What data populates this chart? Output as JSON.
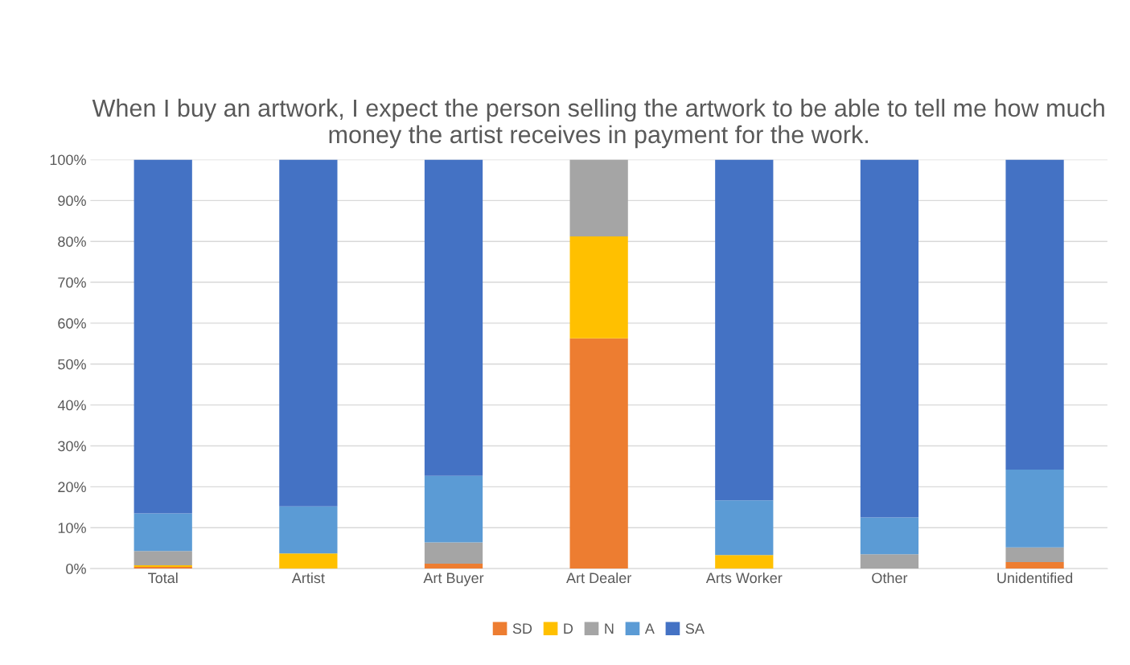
{
  "chart_data": {
    "type": "bar",
    "title": "When I buy an artwork, I expect the person selling the artwork to be able to tell me how much money the artist receives in payment for the work.",
    "categories": [
      "Total",
      "Artist",
      "Art Buyer",
      "Art Dealer",
      "Arts Worker",
      "Other",
      "Unidentified"
    ],
    "stacked": true,
    "series": [
      {
        "name": "SD",
        "color": "#ed7d31",
        "values": [
          0.4,
          0,
          1.2,
          56.3,
          0,
          0,
          1.6
        ]
      },
      {
        "name": "D",
        "color": "#ffc000",
        "values": [
          0.4,
          3.7,
          0,
          24.9,
          3.3,
          0,
          0
        ]
      },
      {
        "name": "N",
        "color": "#a5a5a5",
        "values": [
          3.5,
          0,
          5.2,
          18.8,
          0,
          3.5,
          3.6
        ]
      },
      {
        "name": "A",
        "color": "#5b9bd5",
        "values": [
          9.2,
          11.5,
          16.3,
          0,
          13.4,
          9.0,
          19.0
        ]
      },
      {
        "name": "SA",
        "color": "#4472c4",
        "values": [
          86.5,
          84.8,
          77.3,
          0,
          83.3,
          87.5,
          75.8
        ]
      }
    ],
    "ylim": [
      0,
      100
    ],
    "yticks": [
      {
        "value": 0,
        "label": "0%"
      },
      {
        "value": 10,
        "label": "10%"
      },
      {
        "value": 20,
        "label": "20%"
      },
      {
        "value": 30,
        "label": "30%"
      },
      {
        "value": 40,
        "label": "40%"
      },
      {
        "value": 50,
        "label": "50%"
      },
      {
        "value": 60,
        "label": "60%"
      },
      {
        "value": 70,
        "label": "70%"
      },
      {
        "value": 80,
        "label": "80%"
      },
      {
        "value": 90,
        "label": "90%"
      },
      {
        "value": 100,
        "label": "100%"
      }
    ],
    "grid": "y",
    "legend": "bottom"
  }
}
